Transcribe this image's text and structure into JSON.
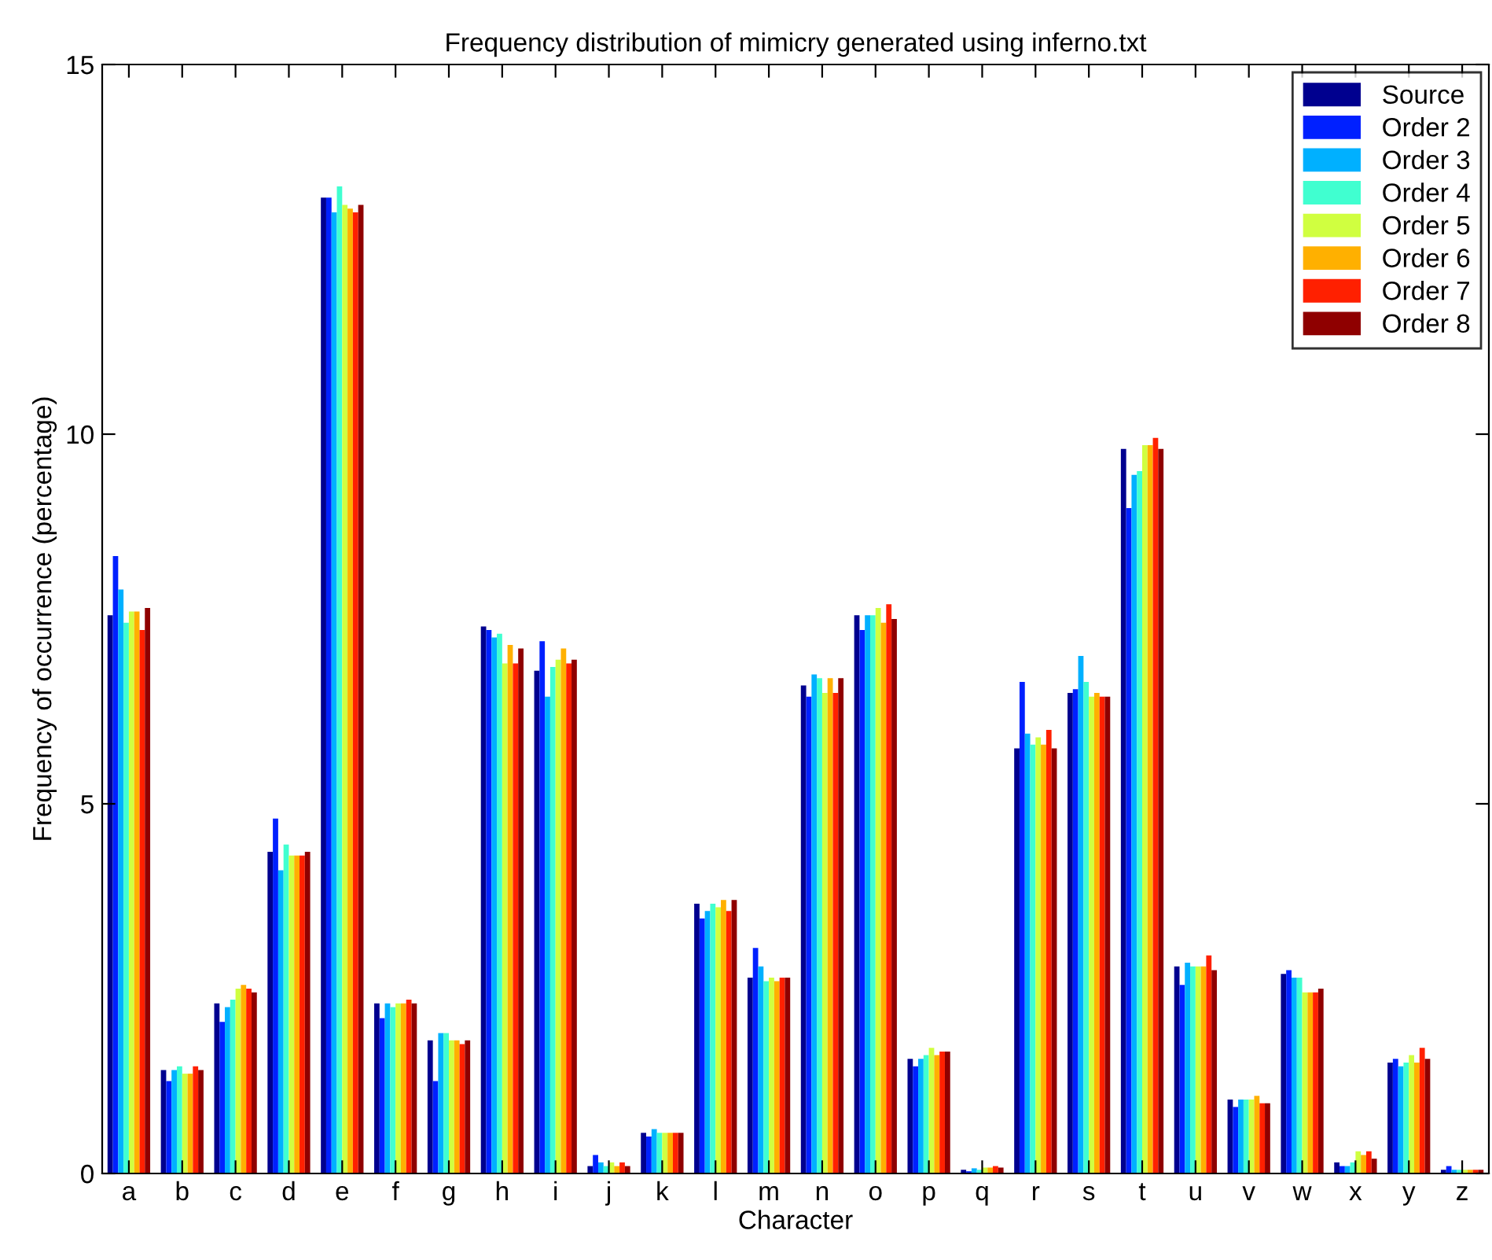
{
  "chart_data": {
    "type": "bar",
    "title": "Frequency distribution of mimicry generated using inferno.txt",
    "xlabel": "Character",
    "ylabel": "Frequency of occurrence (percentage)",
    "categories": [
      "a",
      "b",
      "c",
      "d",
      "e",
      "f",
      "g",
      "h",
      "i",
      "j",
      "k",
      "l",
      "m",
      "n",
      "o",
      "p",
      "q",
      "r",
      "s",
      "t",
      "u",
      "v",
      "w",
      "x",
      "y",
      "z"
    ],
    "series": [
      {
        "name": "Source",
        "color": "#00008f",
        "values": [
          7.55,
          1.4,
          2.3,
          4.35,
          13.2,
          2.3,
          1.8,
          7.4,
          6.8,
          0.1,
          0.55,
          3.65,
          2.65,
          6.6,
          7.55,
          1.55,
          0.05,
          5.75,
          6.5,
          9.8,
          2.8,
          1.0,
          2.7,
          0.15,
          1.5,
          0.05
        ]
      },
      {
        "name": "Order 2",
        "color": "#0020ff",
        "values": [
          8.35,
          1.25,
          2.05,
          4.8,
          13.2,
          2.1,
          1.25,
          7.35,
          7.2,
          0.25,
          0.5,
          3.45,
          3.05,
          6.45,
          7.35,
          1.45,
          0.03,
          6.65,
          6.55,
          9.0,
          2.55,
          0.9,
          2.75,
          0.1,
          1.55,
          0.1
        ]
      },
      {
        "name": "Order 3",
        "color": "#00b0ff",
        "values": [
          7.9,
          1.4,
          2.25,
          4.1,
          13.0,
          2.3,
          1.9,
          7.25,
          6.45,
          0.15,
          0.6,
          3.55,
          2.8,
          6.75,
          7.55,
          1.55,
          0.07,
          5.95,
          7.0,
          9.45,
          2.85,
          1.0,
          2.65,
          0.1,
          1.45,
          0.05
        ]
      },
      {
        "name": "Order 4",
        "color": "#40ffd0",
        "values": [
          7.45,
          1.45,
          2.35,
          4.45,
          13.35,
          2.25,
          1.9,
          7.3,
          6.85,
          0.1,
          0.55,
          3.65,
          2.6,
          6.7,
          7.55,
          1.6,
          0.05,
          5.8,
          6.65,
          9.5,
          2.8,
          1.0,
          2.65,
          0.15,
          1.5,
          0.05
        ]
      },
      {
        "name": "Order 5",
        "color": "#d0ff40",
        "values": [
          7.6,
          1.35,
          2.5,
          4.3,
          13.1,
          2.3,
          1.8,
          6.9,
          6.95,
          0.15,
          0.55,
          3.6,
          2.65,
          6.5,
          7.65,
          1.7,
          0.08,
          5.9,
          6.45,
          9.85,
          2.8,
          1.0,
          2.45,
          0.3,
          1.6,
          0.05
        ]
      },
      {
        "name": "Order 6",
        "color": "#ffb000",
        "values": [
          7.6,
          1.35,
          2.55,
          4.3,
          13.05,
          2.3,
          1.8,
          7.15,
          7.1,
          0.1,
          0.55,
          3.7,
          2.6,
          6.7,
          7.45,
          1.6,
          0.08,
          5.8,
          6.5,
          9.85,
          2.8,
          1.05,
          2.45,
          0.25,
          1.5,
          0.05
        ]
      },
      {
        "name": "Order 7",
        "color": "#ff2000",
        "values": [
          7.35,
          1.45,
          2.5,
          4.3,
          13.0,
          2.35,
          1.75,
          6.9,
          6.9,
          0.15,
          0.55,
          3.55,
          2.65,
          6.5,
          7.7,
          1.65,
          0.1,
          6.0,
          6.45,
          9.95,
          2.95,
          0.95,
          2.45,
          0.3,
          1.7,
          0.05
        ]
      },
      {
        "name": "Order 8",
        "color": "#8f0000",
        "values": [
          7.65,
          1.4,
          2.45,
          4.35,
          13.1,
          2.3,
          1.8,
          7.1,
          6.95,
          0.1,
          0.55,
          3.7,
          2.65,
          6.7,
          7.5,
          1.65,
          0.08,
          5.75,
          6.45,
          9.8,
          2.75,
          0.95,
          2.5,
          0.2,
          1.55,
          0.05
        ]
      }
    ],
    "ylim": [
      0,
      15
    ],
    "yticks": [
      0,
      5,
      10,
      15
    ],
    "legend": "top right",
    "grid": false
  }
}
